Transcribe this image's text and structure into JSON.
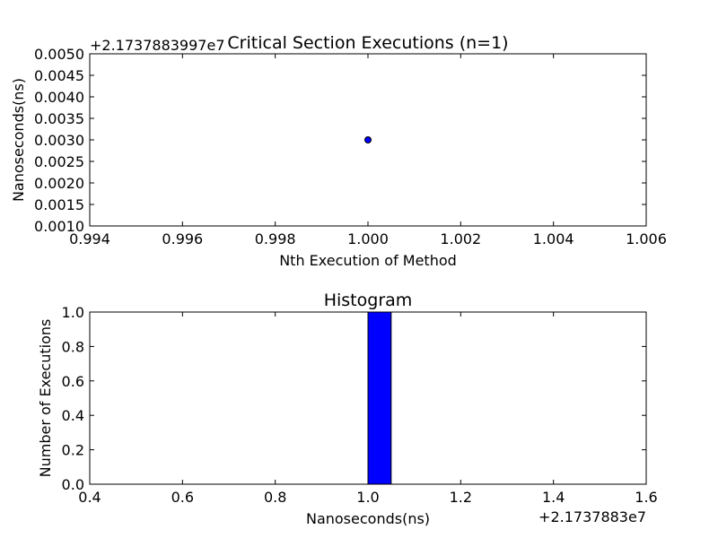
{
  "chart_data": [
    {
      "type": "scatter",
      "title": "Critical Section Executions (n=1)",
      "xlabel": "Nth Execution of Method",
      "ylabel": "Nanoseconds(ns)",
      "y_offset_label": "+2.1737883997e7",
      "xlim": [
        0.994,
        1.006
      ],
      "ylim": [
        0.001,
        0.005
      ],
      "x_ticks": [
        "0.994",
        "0.996",
        "0.998",
        "1.000",
        "1.002",
        "1.004",
        "1.006"
      ],
      "y_ticks": [
        "0.0010",
        "0.0015",
        "0.0020",
        "0.0025",
        "0.0030",
        "0.0035",
        "0.0040",
        "0.0045",
        "0.0050"
      ],
      "points": [
        {
          "x": 1.0,
          "y": 0.003
        }
      ],
      "marker_color": "#0000ff"
    },
    {
      "type": "bar",
      "title": "Histogram",
      "xlabel": "Nanoseconds(ns)",
      "ylabel": "Number of Executions",
      "x_offset_label": "+2.1737883e7",
      "xlim": [
        0.4,
        1.6
      ],
      "ylim": [
        0.0,
        1.0
      ],
      "x_ticks": [
        "0.4",
        "0.6",
        "0.8",
        "1.0",
        "1.2",
        "1.4",
        "1.6"
      ],
      "y_ticks": [
        "0.0",
        "0.2",
        "0.4",
        "0.6",
        "0.8",
        "1.0"
      ],
      "bin_edges": [
        0.5,
        0.55,
        0.6,
        0.65,
        0.7,
        0.75,
        0.8,
        0.85,
        0.9,
        0.95,
        1.0,
        1.05,
        1.1,
        1.15,
        1.2,
        1.25,
        1.3,
        1.35,
        1.4,
        1.45,
        1.5
      ],
      "values": [
        0,
        0,
        0,
        0,
        0,
        0,
        0,
        0,
        0,
        0,
        1,
        0,
        0,
        0,
        0,
        0,
        0,
        0,
        0,
        0
      ],
      "bar_color": "#0000ff"
    }
  ]
}
